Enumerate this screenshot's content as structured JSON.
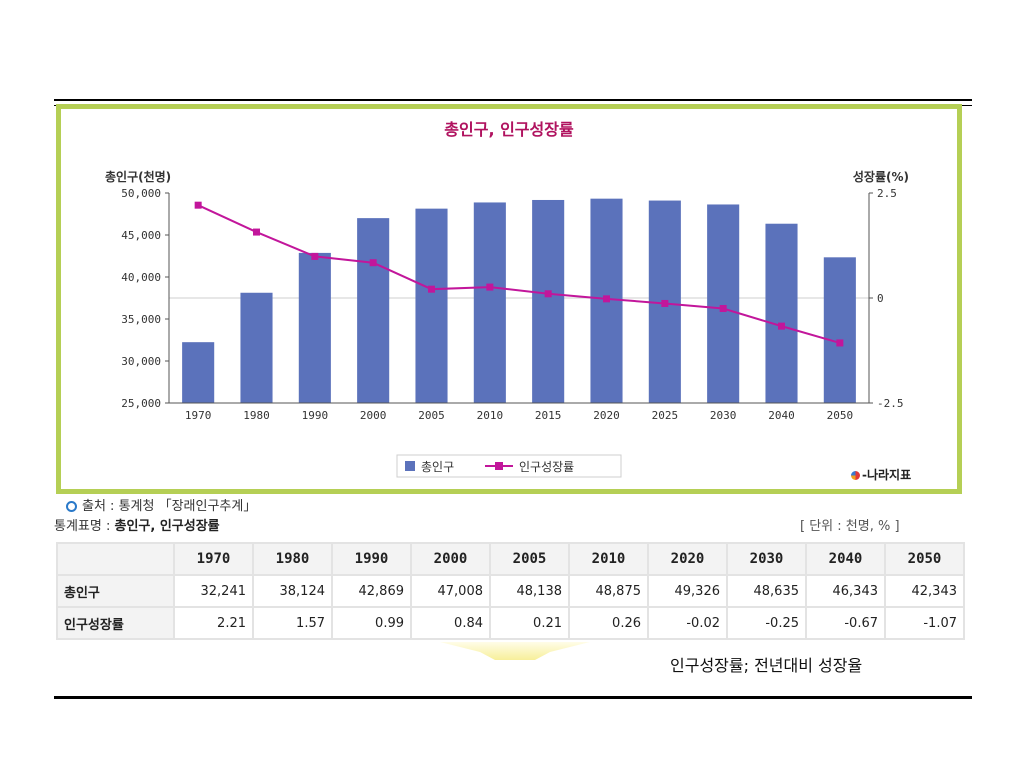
{
  "chart_data": {
    "type": "bar+line",
    "title": "총인구, 인구성장률",
    "categories": [
      "1970",
      "1980",
      "1990",
      "2000",
      "2005",
      "2010",
      "2015",
      "2020",
      "2025",
      "2030",
      "2040",
      "2050"
    ],
    "series": [
      {
        "name": "총인구",
        "type": "bar",
        "axis": "left",
        "color": "#5b72bb",
        "values": [
          32241,
          38124,
          42869,
          47008,
          48138,
          48875,
          49170,
          49326,
          49100,
          48635,
          46343,
          42343
        ]
      },
      {
        "name": "인구성장률",
        "type": "line",
        "axis": "right",
        "color": "#c2169b",
        "values": [
          2.21,
          1.57,
          0.99,
          0.84,
          0.21,
          0.26,
          0.1,
          -0.02,
          -0.13,
          -0.25,
          -0.67,
          -1.07
        ]
      }
    ],
    "ylabel_left": "총인구(천명)",
    "ylabel_right": "성장률(%)",
    "ylim_left": [
      25000,
      50000
    ],
    "ylim_right": [
      -2.5,
      2.5
    ],
    "yticks_left": [
      "50,000",
      "45,000",
      "40,000",
      "35,000",
      "30,000",
      "25,000"
    ],
    "yticks_right": [
      "2.5",
      "0",
      "-2.5"
    ],
    "legend": "bottom-center",
    "grid": false
  },
  "logo_text": "-나라지표",
  "source": "출처 : 통계청 「장래인구추계」",
  "stat_name_prefix": "통계표명 : ",
  "stat_name": "총인구, 인구성장률",
  "unit": "[ 단위 : 천명, % ]",
  "table": {
    "headers": [
      "1970",
      "1980",
      "1990",
      "2000",
      "2005",
      "2010",
      "2020",
      "2030",
      "2040",
      "2050"
    ],
    "rows": [
      {
        "label": "총인구",
        "values": [
          "32,241",
          "38,124",
          "42,869",
          "47,008",
          "48,138",
          "48,875",
          "49,326",
          "48,635",
          "46,343",
          "42,343"
        ]
      },
      {
        "label": "인구성장률",
        "values": [
          "2.21",
          "1.57",
          "0.99",
          "0.84",
          "0.21",
          "0.26",
          "-0.02",
          "-0.25",
          "-0.67",
          "-1.07"
        ]
      }
    ]
  },
  "note": "인구성장률; 전년대비 성장율",
  "colors": {
    "frame": "#b5cf55",
    "bar": "#5b72bb",
    "line": "#c2169b",
    "title": "#b0125f"
  }
}
